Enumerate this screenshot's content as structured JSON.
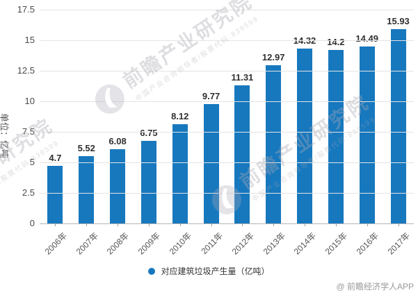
{
  "chart_data": {
    "type": "bar",
    "title": "",
    "categories": [
      "2006年",
      "2007年",
      "2008年",
      "2009年",
      "2010年",
      "2011年",
      "2012年",
      "2013年",
      "2014年",
      "2015年",
      "2016年",
      "2017年"
    ],
    "values": [
      4.7,
      5.52,
      6.08,
      6.75,
      8.12,
      9.77,
      11.31,
      12.97,
      14.32,
      14.2,
      14.49,
      15.93
    ],
    "value_labels": [
      "4.7",
      "5.52",
      "6.08",
      "6.75",
      "8.12",
      "9.77",
      "11.31",
      "12.97",
      "14.32",
      "14.2",
      "14.49",
      "15.93"
    ],
    "series_name": "对应建筑垃圾产生量（亿吨）",
    "xlabel": "",
    "ylabel": "单位：亿吨",
    "ylim": [
      0,
      17.5
    ],
    "yticks": [
      0,
      2.5,
      5,
      7.5,
      10,
      12.5,
      15,
      17.5
    ],
    "ytick_labels": [
      "0",
      "2.5",
      "5",
      "7.5",
      "10",
      "12.5",
      "15",
      "17.5"
    ],
    "bar_color": "#1778be",
    "grid": true,
    "legend_position": "bottom"
  },
  "y_axis": {
    "title": "单位：亿吨"
  },
  "legend": {
    "label": "对应建筑垃圾产生量（亿吨）",
    "marker_color": "#1778be"
  },
  "watermark": {
    "logo": "qianzhan-phoenix-logo",
    "brand_text": "前瞻产业研究院",
    "sub_text": "中国产业咨询领导者/股票代码:839599"
  },
  "attribution": {
    "text": "@ 前瞻经济学人APP"
  }
}
